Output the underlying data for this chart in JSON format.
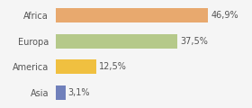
{
  "categories": [
    "Asia",
    "America",
    "Europa",
    "Africa"
  ],
  "values": [
    3.1,
    12.5,
    37.5,
    46.9
  ],
  "labels": [
    "3,1%",
    "12,5%",
    "37,5%",
    "46,9%"
  ],
  "bar_colors": [
    "#7080bb",
    "#f0c040",
    "#b5c98a",
    "#e8a96e"
  ],
  "background_color": "#f5f5f5",
  "xlim": [
    0,
    58
  ],
  "bar_height": 0.55,
  "label_fontsize": 7,
  "tick_fontsize": 7
}
